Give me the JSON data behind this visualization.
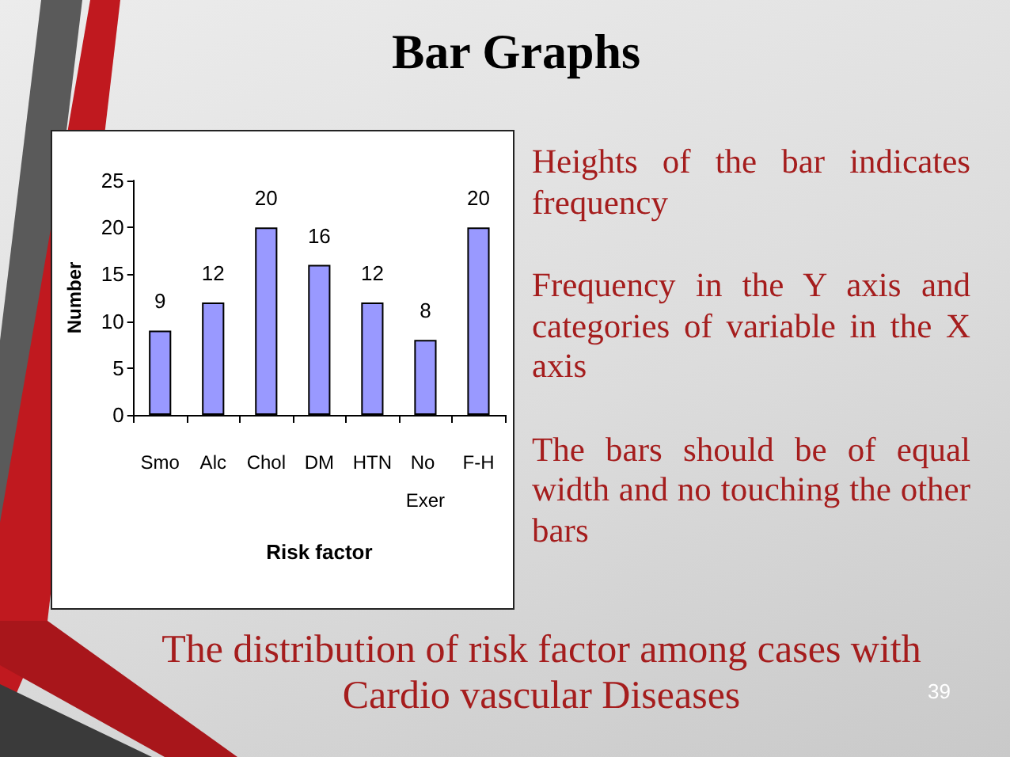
{
  "chart_data": {
    "type": "bar",
    "title": "Bar Graphs",
    "categories": [
      "Smo",
      "Alc",
      "Chol",
      "DM",
      "HTN",
      "No Exer",
      "F-H"
    ],
    "values": [
      9,
      12,
      20,
      16,
      12,
      8,
      20
    ],
    "color": "#9999ff",
    "xlabel": "Risk factor",
    "ylabel": "Number",
    "ylim": [
      0,
      25
    ],
    "yticks": [
      0,
      5,
      10,
      15,
      20,
      25
    ],
    "data_labels": true,
    "annotations": [
      "Heights of the bar indicates frequency",
      "Frequency in the Y axis and categories of variable in the X axis",
      "The bars should be of equal width and no touching the other bars",
      "The distribution of risk factor among cases with Cardio vascular Diseases",
      "39"
    ]
  }
}
